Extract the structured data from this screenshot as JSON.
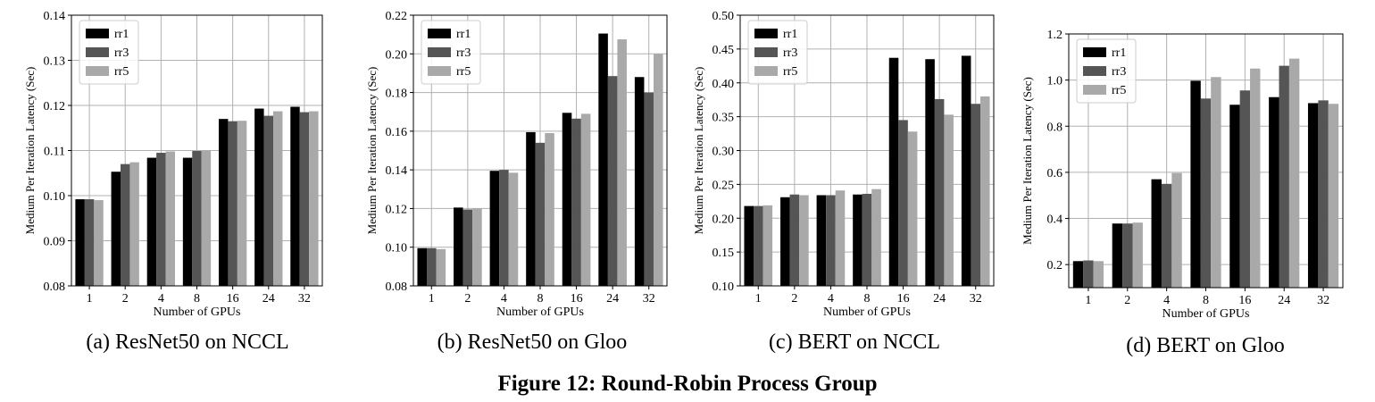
{
  "figure": {
    "caption": "Figure 12: Round-Robin Process Group"
  },
  "colors": {
    "rr1": "#000000",
    "rr3": "#555555",
    "rr5": "#a9a9a9",
    "grid": "#b0b0b0"
  },
  "chart_data": [
    {
      "type": "bar",
      "subcaption": "(a) ResNet50 on NCCL",
      "xlabel": "Number of GPUs",
      "ylabel": "Medium Per Iteration Latency (Sec)",
      "categories": [
        "1",
        "2",
        "4",
        "8",
        "16",
        "24",
        "32"
      ],
      "ylim": [
        0.08,
        0.14
      ],
      "yticks": [
        0.08,
        0.09,
        0.1,
        0.11,
        0.12,
        0.13,
        0.14
      ],
      "ytick_labels": [
        "0.08",
        "0.09",
        "0.10",
        "0.11",
        "0.12",
        "0.13",
        "0.14"
      ],
      "grid": true,
      "legend_position": "top-left",
      "series": [
        {
          "name": "rr1",
          "values": [
            0.0992,
            0.1053,
            0.1084,
            0.1084,
            0.117,
            0.1193,
            0.1197
          ]
        },
        {
          "name": "rr3",
          "values": [
            0.0992,
            0.107,
            0.1095,
            0.1099,
            0.1165,
            0.1177,
            0.1185
          ]
        },
        {
          "name": "rr5",
          "values": [
            0.099,
            0.1074,
            0.1098,
            0.11,
            0.1166,
            0.1187,
            0.1187
          ]
        }
      ]
    },
    {
      "type": "bar",
      "subcaption": "(b) ResNet50 on Gloo",
      "xlabel": "Number of GPUs",
      "ylabel": "Medium Per Iteration Latency (Sec)",
      "categories": [
        "1",
        "2",
        "4",
        "8",
        "16",
        "24",
        "32"
      ],
      "ylim": [
        0.08,
        0.22
      ],
      "yticks": [
        0.08,
        0.1,
        0.12,
        0.14,
        0.16,
        0.18,
        0.2,
        0.22
      ],
      "ytick_labels": [
        "0.08",
        "0.10",
        "0.12",
        "0.14",
        "0.16",
        "0.18",
        "0.20",
        "0.22"
      ],
      "grid": true,
      "legend_position": "top-left",
      "series": [
        {
          "name": "rr1",
          "values": [
            0.0995,
            0.1205,
            0.1395,
            0.1595,
            0.1695,
            0.2105,
            0.188
          ]
        },
        {
          "name": "rr3",
          "values": [
            0.0995,
            0.1195,
            0.14,
            0.154,
            0.1665,
            0.1885,
            0.18
          ]
        },
        {
          "name": "rr5",
          "values": [
            0.099,
            0.12,
            0.1385,
            0.159,
            0.169,
            0.2075,
            0.2
          ]
        }
      ]
    },
    {
      "type": "bar",
      "subcaption": "(c) BERT on NCCL",
      "xlabel": "Number of GPUs",
      "ylabel": "Medium Per Iteration Latency (Sec)",
      "categories": [
        "1",
        "2",
        "4",
        "8",
        "16",
        "24",
        "32"
      ],
      "ylim": [
        0.1,
        0.5
      ],
      "yticks": [
        0.1,
        0.15,
        0.2,
        0.25,
        0.3,
        0.35,
        0.4,
        0.45,
        0.5
      ],
      "ytick_labels": [
        "0.10",
        "0.15",
        "0.20",
        "0.25",
        "0.30",
        "0.35",
        "0.40",
        "0.45",
        "0.50"
      ],
      "grid": true,
      "legend_position": "top-left",
      "series": [
        {
          "name": "rr1",
          "values": [
            0.218,
            0.231,
            0.234,
            0.235,
            0.437,
            0.435,
            0.44
          ]
        },
        {
          "name": "rr3",
          "values": [
            0.218,
            0.235,
            0.234,
            0.236,
            0.345,
            0.376,
            0.369
          ]
        },
        {
          "name": "rr5",
          "values": [
            0.219,
            0.234,
            0.241,
            0.243,
            0.328,
            0.353,
            0.38
          ]
        }
      ]
    },
    {
      "type": "bar",
      "subcaption": "(d) BERT on Gloo",
      "xlabel": "Number of GPUs",
      "ylabel": "Medium Per Iteration Latency (Sec)",
      "categories": [
        "1",
        "2",
        "4",
        "8",
        "16",
        "24",
        "32"
      ],
      "ylim": [
        0.1,
        1.2
      ],
      "yticks": [
        0.2,
        0.4,
        0.6,
        0.8,
        1.0,
        1.2
      ],
      "ytick_labels": [
        "0.2",
        "0.4",
        "0.6",
        "0.8",
        "1.0",
        "1.2"
      ],
      "grid": true,
      "legend_position": "top-left",
      "series": [
        {
          "name": "rr1",
          "values": [
            0.215,
            0.378,
            0.57,
            0.997,
            0.893,
            0.926,
            0.9
          ]
        },
        {
          "name": "rr3",
          "values": [
            0.218,
            0.378,
            0.55,
            0.92,
            0.955,
            1.062,
            0.912
          ]
        },
        {
          "name": "rr5",
          "values": [
            0.215,
            0.382,
            0.597,
            1.013,
            1.05,
            1.093,
            0.897
          ]
        }
      ]
    }
  ]
}
